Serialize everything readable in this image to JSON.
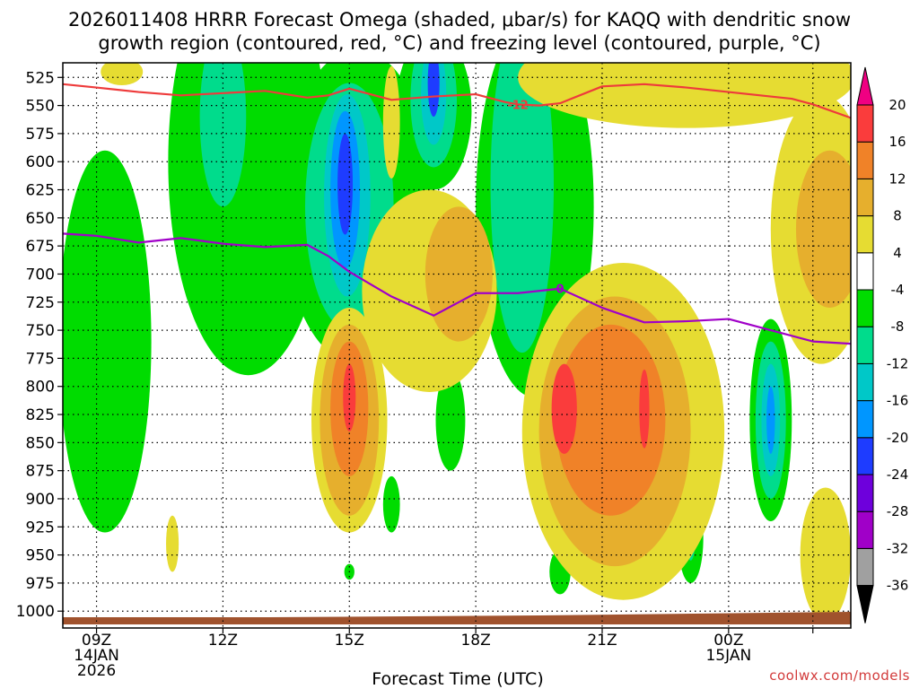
{
  "chart_data": {
    "type": "contour",
    "title_line1": "2026011408 HRRR Forecast Omega (shaded, μbar/s) for KAQQ with dendritic snow",
    "title_line2": "growth region (contoured, red, °C) and freezing level (contoured, purple, °C)",
    "xlabel": "Forecast Time (UTC)",
    "credit": "coolwx.com/models",
    "y_ticks": [
      525,
      550,
      575,
      600,
      625,
      650,
      675,
      700,
      725,
      750,
      775,
      800,
      825,
      850,
      875,
      900,
      925,
      950,
      975,
      1000
    ],
    "ylim_hpa": [
      512,
      1015
    ],
    "xlim_hours": [
      8.2,
      26.9
    ],
    "x_ticks": [
      {
        "hour": 9,
        "label": "09Z",
        "sub1": "14JAN",
        "sub2": "2026"
      },
      {
        "hour": 12,
        "label": "12Z",
        "sub1": "",
        "sub2": ""
      },
      {
        "hour": 15,
        "label": "15Z",
        "sub1": "",
        "sub2": ""
      },
      {
        "hour": 18,
        "label": "18Z",
        "sub1": "",
        "sub2": ""
      },
      {
        "hour": 21,
        "label": "21Z",
        "sub1": "",
        "sub2": ""
      },
      {
        "hour": 24,
        "label": "00Z",
        "sub1": "15JAN",
        "sub2": ""
      },
      {
        "hour": 26,
        "label": "",
        "sub1": "",
        "sub2": ""
      }
    ],
    "colorbar": {
      "levels": [
        -36,
        -32,
        -28,
        -24,
        -20,
        -16,
        -12,
        -8,
        -4,
        4,
        8,
        12,
        16,
        20
      ],
      "colors": [
        "#a0a0a0",
        "#a000c8",
        "#6e00dc",
        "#1e3cff",
        "#0096ff",
        "#00c8c8",
        "#00dc8c",
        "#00dc00",
        "#ffffff",
        "#e6dc32",
        "#e6af2d",
        "#f08228",
        "#fa3c3c",
        "#f00082"
      ]
    },
    "series": [
      {
        "name": "Dendritic growth region -12°C",
        "color": "#ee3b3b",
        "label": "-12",
        "label_at_hour": 19.0,
        "hours": [
          8.2,
          9.0,
          10.0,
          11.0,
          12.0,
          13.0,
          14.0,
          14.5,
          15.0,
          16.0,
          17.0,
          18.0,
          18.7,
          19.0,
          19.5,
          20.0,
          21.0,
          22.0,
          23.0,
          24.0,
          25.0,
          25.5,
          26.0,
          26.9
        ],
        "hpa": [
          531,
          534,
          538,
          541,
          539,
          537,
          543,
          541,
          535,
          545,
          542,
          540,
          547,
          549,
          550,
          548,
          533,
          531,
          534,
          538,
          542,
          544,
          549,
          561
        ]
      },
      {
        "name": "Freezing level 0°C",
        "color": "#a000c8",
        "label": "0",
        "label_at_hour": 20.0,
        "hours": [
          8.2,
          9.0,
          10.0,
          11.0,
          12.0,
          13.0,
          14.0,
          14.5,
          15.0,
          16.0,
          17.0,
          18.0,
          19.0,
          20.0,
          21.0,
          22.0,
          23.0,
          24.0,
          25.0,
          26.0,
          26.9
        ],
        "hpa": [
          664,
          666,
          672,
          668,
          673,
          676,
          674,
          684,
          698,
          720,
          737,
          717,
          717,
          713,
          730,
          743,
          742,
          740,
          750,
          760,
          762
        ]
      }
    ],
    "omega_cells": [
      {
        "hour": 9.2,
        "hpa": 760,
        "hw": 1.1,
        "hh": 170,
        "level": -8
      },
      {
        "hour": 12.6,
        "hpa": 600,
        "hw": 1.9,
        "hh": 190,
        "level": -8
      },
      {
        "hour": 12.0,
        "hpa": 560,
        "hw": 0.55,
        "hh": 80,
        "level": -12
      },
      {
        "hour": 15.2,
        "hpa": 640,
        "hw": 1.8,
        "hh": 140,
        "level": -8
      },
      {
        "hour": 15.0,
        "hpa": 640,
        "hw": 1.05,
        "hh": 110,
        "level": -12
      },
      {
        "hour": 14.95,
        "hpa": 630,
        "hw": 0.55,
        "hh": 90,
        "level": -16
      },
      {
        "hour": 14.9,
        "hpa": 625,
        "hw": 0.35,
        "hh": 70,
        "level": -20
      },
      {
        "hour": 14.9,
        "hpa": 620,
        "hw": 0.18,
        "hh": 45,
        "level": -24
      },
      {
        "hour": 17.0,
        "hpa": 555,
        "hw": 0.9,
        "hh": 70,
        "level": -8
      },
      {
        "hour": 17.0,
        "hpa": 545,
        "hw": 0.55,
        "hh": 60,
        "level": -12
      },
      {
        "hour": 17.0,
        "hpa": 540,
        "hw": 0.3,
        "hh": 45,
        "level": -16
      },
      {
        "hour": 17.0,
        "hpa": 530,
        "hw": 0.14,
        "hh": 30,
        "level": -24
      },
      {
        "hour": 19.4,
        "hpa": 640,
        "hw": 1.4,
        "hh": 170,
        "level": -8
      },
      {
        "hour": 19.1,
        "hpa": 620,
        "hw": 0.75,
        "hh": 150,
        "level": -12
      },
      {
        "hour": 17.4,
        "hpa": 830,
        "hw": 0.35,
        "hh": 45,
        "level": -8
      },
      {
        "hour": 25.0,
        "hpa": 830,
        "hw": 0.5,
        "hh": 90,
        "level": -8
      },
      {
        "hour": 25.0,
        "hpa": 830,
        "hw": 0.36,
        "hh": 70,
        "level": -12
      },
      {
        "hour": 25.0,
        "hpa": 830,
        "hw": 0.22,
        "hh": 50,
        "level": -16
      },
      {
        "hour": 25.0,
        "hpa": 830,
        "hw": 0.1,
        "hh": 30,
        "level": -20
      },
      {
        "hour": 23.1,
        "hpa": 935,
        "hw": 0.3,
        "hh": 40,
        "level": -8
      },
      {
        "hour": 23.1,
        "hpa": 940,
        "hw": 0.1,
        "hh": 15,
        "level": -12
      },
      {
        "hour": 20.0,
        "hpa": 965,
        "hw": 0.25,
        "hh": 20,
        "level": -8
      },
      {
        "hour": 16.0,
        "hpa": 905,
        "hw": 0.2,
        "hh": 25,
        "level": -8
      },
      {
        "hour": 15.0,
        "hpa": 965,
        "hw": 0.12,
        "hh": 7,
        "level": -8
      },
      {
        "hour": 10.8,
        "hpa": 940,
        "hw": 0.15,
        "hh": 25,
        "level": 4
      },
      {
        "hour": 15.0,
        "hpa": 830,
        "hw": 0.9,
        "hh": 100,
        "level": 4
      },
      {
        "hour": 15.0,
        "hpa": 830,
        "hw": 0.7,
        "hh": 85,
        "level": 8
      },
      {
        "hour": 15.0,
        "hpa": 820,
        "hw": 0.45,
        "hh": 60,
        "level": 12
      },
      {
        "hour": 15.0,
        "hpa": 810,
        "hw": 0.15,
        "hh": 30,
        "level": 16
      },
      {
        "hour": 16.9,
        "hpa": 715,
        "hw": 1.6,
        "hh": 90,
        "level": 4
      },
      {
        "hour": 17.6,
        "hpa": 700,
        "hw": 0.8,
        "hh": 60,
        "level": 8
      },
      {
        "hour": 21.5,
        "hpa": 840,
        "hw": 2.4,
        "hh": 150,
        "level": 4
      },
      {
        "hour": 21.3,
        "hpa": 840,
        "hw": 1.8,
        "hh": 120,
        "level": 8
      },
      {
        "hour": 21.2,
        "hpa": 830,
        "hw": 1.3,
        "hh": 85,
        "level": 12
      },
      {
        "hour": 20.1,
        "hpa": 820,
        "hw": 0.3,
        "hh": 40,
        "level": 16
      },
      {
        "hour": 22.0,
        "hpa": 820,
        "hw": 0.12,
        "hh": 35,
        "level": 16
      },
      {
        "hour": 26.2,
        "hpa": 660,
        "hw": 1.2,
        "hh": 120,
        "level": 4
      },
      {
        "hour": 26.4,
        "hpa": 660,
        "hw": 0.8,
        "hh": 70,
        "level": 8
      },
      {
        "hour": 26.3,
        "hpa": 950,
        "hw": 0.6,
        "hh": 60,
        "level": 4
      },
      {
        "hour": 16.0,
        "hpa": 565,
        "hw": 0.2,
        "hh": 50,
        "level": 4
      },
      {
        "hour": 9.6,
        "hpa": 520,
        "hw": 0.5,
        "hh": 12,
        "level": 4
      },
      {
        "hour": 23.0,
        "hpa": 525,
        "hw": 4.0,
        "hh": 45,
        "level": 4
      }
    ]
  }
}
